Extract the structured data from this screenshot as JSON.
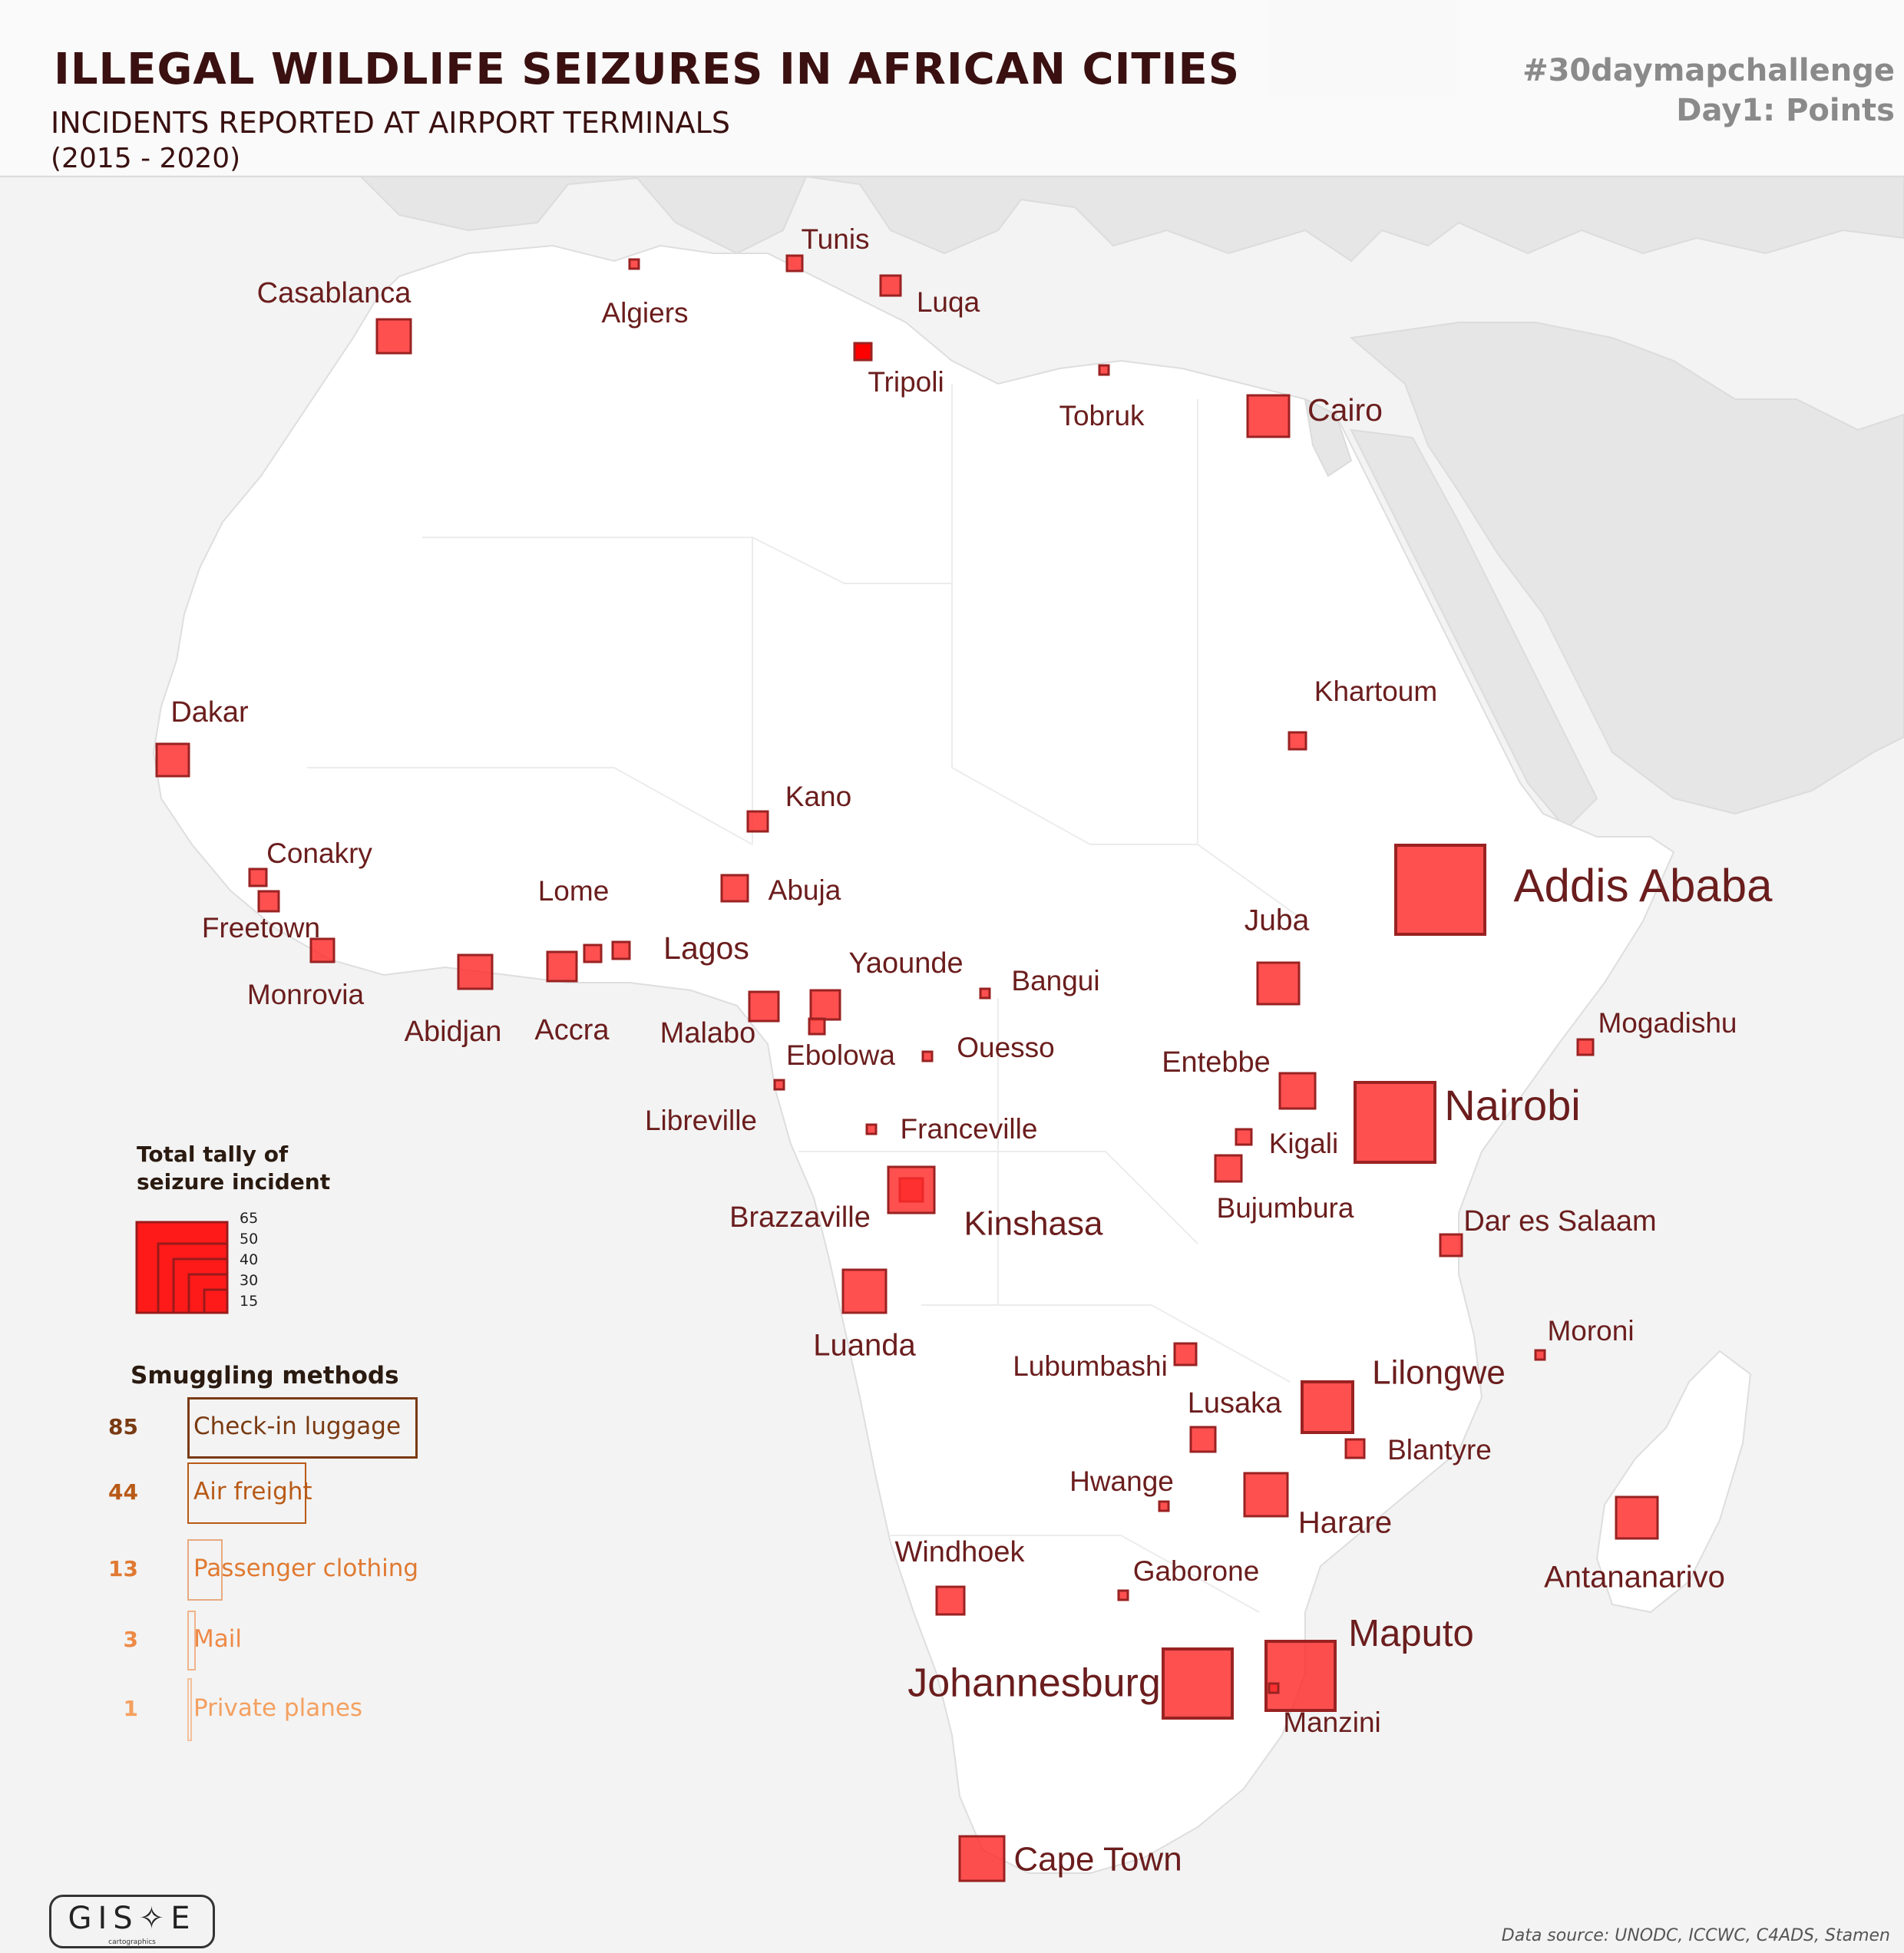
{
  "title": "ILLEGAL WILDLIFE SEIZURES IN AFRICAN CITIES",
  "subtitle": "INCIDENTS REPORTED AT AIRPORT TERMINALS",
  "period": "(2015 - 2020)",
  "challenge": {
    "hashtag": "#30daymapchallenge",
    "day": "Day1: Points"
  },
  "legend": {
    "tally_title_1": "Total tally of",
    "tally_title_2": "seizure incident",
    "tally_values": [
      "65",
      "50",
      "40",
      "30",
      "15"
    ],
    "methods_title": "Smuggling methods",
    "methods": [
      {
        "count": "85",
        "label": "Check-in luggage",
        "color": "#7a3a12",
        "share": 85
      },
      {
        "count": "44",
        "label": "Air freight",
        "color": "#b85a16",
        "share": 44
      },
      {
        "count": "13",
        "label": "Passenger clothing",
        "color": "#e07a32",
        "share": 13
      },
      {
        "count": "3",
        "label": "Mail",
        "color": "#ee8a46",
        "share": 3
      },
      {
        "count": "1",
        "label": "Private planes",
        "color": "#f4a060",
        "share": 1
      }
    ]
  },
  "colors": {
    "point_fill": "#ff2a2a",
    "point_stroke": "#9a2222",
    "label": "#6b1d1d",
    "land": "#ffffff",
    "sea": "#f3f3f3",
    "other_land": "#e6e6e6"
  },
  "cities": [
    {
      "name": "Casablanca"
    },
    {
      "name": "Algiers"
    },
    {
      "name": "Tunis"
    },
    {
      "name": "Luqa"
    },
    {
      "name": "Tripoli"
    },
    {
      "name": "Tobruk"
    },
    {
      "name": "Cairo"
    },
    {
      "name": "Khartoum"
    },
    {
      "name": "Dakar"
    },
    {
      "name": "Kano"
    },
    {
      "name": "Conakry"
    },
    {
      "name": "Abuja"
    },
    {
      "name": "Freetown"
    },
    {
      "name": "Lome"
    },
    {
      "name": "Lagos"
    },
    {
      "name": "Monrovia"
    },
    {
      "name": "Abidjan"
    },
    {
      "name": "Accra"
    },
    {
      "name": "Yaounde"
    },
    {
      "name": "Bangui"
    },
    {
      "name": "Malabo"
    },
    {
      "name": "Ebolowa"
    },
    {
      "name": "Ouesso"
    },
    {
      "name": "Libreville"
    },
    {
      "name": "Franceville"
    },
    {
      "name": "Brazzaville"
    },
    {
      "name": "Kinshasa"
    },
    {
      "name": "Luanda"
    },
    {
      "name": "Addis Ababa"
    },
    {
      "name": "Juba"
    },
    {
      "name": "Mogadishu"
    },
    {
      "name": "Entebbe"
    },
    {
      "name": "Nairobi"
    },
    {
      "name": "Kigali"
    },
    {
      "name": "Bujumbura"
    },
    {
      "name": "Dar es Salaam"
    },
    {
      "name": "Moroni"
    },
    {
      "name": "Lubumbashi"
    },
    {
      "name": "Lilongwe"
    },
    {
      "name": "Lusaka"
    },
    {
      "name": "Blantyre"
    },
    {
      "name": "Hwange"
    },
    {
      "name": "Harare"
    },
    {
      "name": "Antananarivo"
    },
    {
      "name": "Windhoek"
    },
    {
      "name": "Gaborone"
    },
    {
      "name": "Maputo"
    },
    {
      "name": "Johannesburg"
    },
    {
      "name": "Manzini"
    },
    {
      "name": "Cape Town"
    }
  ],
  "logo": {
    "text": "GIS✧E",
    "sub": "cartographics"
  },
  "source": "Data source: UNODC, ICCWC, C4ADS, Stamen"
}
